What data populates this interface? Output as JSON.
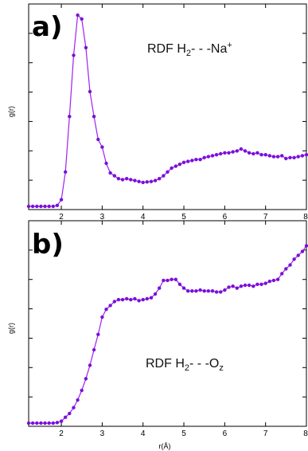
{
  "chart_data": [
    {
      "type": "scatter",
      "panel_label": "a)",
      "annotation": {
        "prefix": "RDF H",
        "sub": "2",
        "middle": "- - -Na",
        "sup": "+",
        "sub2": ""
      },
      "xlabel": "",
      "ylabel": "g(r)",
      "xlim": [
        1.2,
        8.0
      ],
      "ylim": [
        0,
        1
      ],
      "x_ticks": [
        "2",
        "3",
        "4",
        "5",
        "6",
        "7",
        "8"
      ],
      "y_tick_count": 7,
      "grid": false,
      "series": [
        {
          "color": "#a020f0",
          "x": [
            1.2,
            1.3,
            1.4,
            1.5,
            1.6,
            1.7,
            1.8,
            1.9,
            2.0,
            2.1,
            2.2,
            2.3,
            2.4,
            2.5,
            2.6,
            2.7,
            2.8,
            2.9,
            3.0,
            3.1,
            3.2,
            3.3,
            3.4,
            3.5,
            3.6,
            3.7,
            3.8,
            3.9,
            4.0,
            4.1,
            4.2,
            4.3,
            4.4,
            4.5,
            4.6,
            4.7,
            4.8,
            4.9,
            5.0,
            5.1,
            5.2,
            5.3,
            5.4,
            5.5,
            5.6,
            5.7,
            5.8,
            5.9,
            6.0,
            6.1,
            6.2,
            6.3,
            6.4,
            6.5,
            6.6,
            6.7,
            6.8,
            6.9,
            7.0,
            7.1,
            7.2,
            7.3,
            7.4,
            7.5,
            7.6,
            7.7,
            7.8,
            7.9,
            8.0
          ],
          "values": [
            0,
            0,
            0,
            0,
            0,
            0,
            0,
            0.005,
            0.035,
            0.18,
            0.47,
            0.79,
            1.0,
            0.98,
            0.83,
            0.6,
            0.47,
            0.35,
            0.31,
            0.225,
            0.175,
            0.16,
            0.145,
            0.14,
            0.145,
            0.14,
            0.135,
            0.13,
            0.125,
            0.128,
            0.13,
            0.135,
            0.145,
            0.16,
            0.18,
            0.2,
            0.21,
            0.22,
            0.23,
            0.235,
            0.24,
            0.245,
            0.245,
            0.255,
            0.26,
            0.265,
            0.27,
            0.275,
            0.28,
            0.28,
            0.285,
            0.29,
            0.3,
            0.29,
            0.28,
            0.275,
            0.28,
            0.27,
            0.27,
            0.265,
            0.26,
            0.26,
            0.265,
            0.25,
            0.255,
            0.255,
            0.26,
            0.265,
            0.27
          ]
        }
      ]
    },
    {
      "type": "scatter",
      "panel_label": "b)",
      "annotation": {
        "prefix": "RDF H",
        "sub": "2",
        "middle": "- - -O",
        "sup": "",
        "sub2": "z"
      },
      "xlabel": "r(Å)",
      "ylabel": "g(r)",
      "xlim": [
        1.2,
        8.0
      ],
      "ylim": [
        0,
        1
      ],
      "x_ticks": [
        "2",
        "3",
        "4",
        "5",
        "6",
        "7",
        "8"
      ],
      "y_tick_count": 7,
      "grid": false,
      "series": [
        {
          "color": "#a020f0",
          "x": [
            1.2,
            1.3,
            1.4,
            1.5,
            1.6,
            1.7,
            1.8,
            1.9,
            2.0,
            2.1,
            2.2,
            2.3,
            2.4,
            2.5,
            2.6,
            2.7,
            2.8,
            2.9,
            3.0,
            3.1,
            3.2,
            3.3,
            3.4,
            3.5,
            3.6,
            3.7,
            3.8,
            3.9,
            4.0,
            4.1,
            4.2,
            4.3,
            4.4,
            4.5,
            4.6,
            4.7,
            4.8,
            4.9,
            5.0,
            5.1,
            5.2,
            5.3,
            5.4,
            5.5,
            5.6,
            5.7,
            5.8,
            5.9,
            6.0,
            6.1,
            6.2,
            6.3,
            6.4,
            6.5,
            6.6,
            6.7,
            6.8,
            6.9,
            7.0,
            7.1,
            7.2,
            7.3,
            7.4,
            7.5,
            7.6,
            7.7,
            7.8,
            7.9,
            8.0
          ],
          "values": [
            0,
            0,
            0,
            0,
            0,
            0,
            0,
            0.003,
            0.01,
            0.03,
            0.05,
            0.08,
            0.12,
            0.17,
            0.23,
            0.3,
            0.38,
            0.46,
            0.55,
            0.59,
            0.61,
            0.63,
            0.64,
            0.64,
            0.645,
            0.64,
            0.645,
            0.635,
            0.64,
            0.645,
            0.65,
            0.67,
            0.7,
            0.74,
            0.74,
            0.745,
            0.745,
            0.72,
            0.7,
            0.685,
            0.685,
            0.685,
            0.69,
            0.685,
            0.685,
            0.685,
            0.68,
            0.68,
            0.69,
            0.705,
            0.71,
            0.7,
            0.71,
            0.715,
            0.715,
            0.71,
            0.72,
            0.72,
            0.725,
            0.735,
            0.74,
            0.745,
            0.775,
            0.8,
            0.82,
            0.85,
            0.87,
            0.89,
            0.92
          ]
        }
      ]
    }
  ]
}
